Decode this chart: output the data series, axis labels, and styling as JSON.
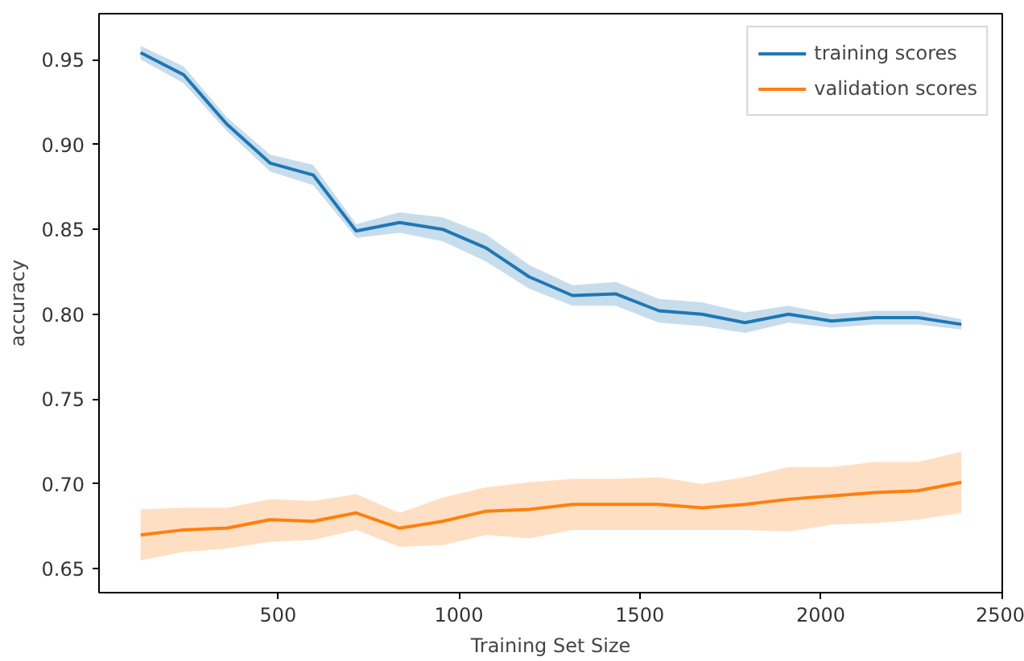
{
  "chart_data": {
    "type": "line",
    "xlabel": "Training Set Size",
    "ylabel": "accuracy",
    "x": [
      120,
      239,
      358,
      478,
      597,
      716,
      836,
      955,
      1075,
      1194,
      1314,
      1433,
      1553,
      1672,
      1791,
      1911,
      2030,
      2150,
      2269,
      2389
    ],
    "series": [
      {
        "name": "training scores",
        "color": "#1f77b4",
        "values": [
          0.954,
          0.941,
          0.912,
          0.889,
          0.882,
          0.849,
          0.854,
          0.85,
          0.839,
          0.822,
          0.811,
          0.812,
          0.802,
          0.8,
          0.795,
          0.8,
          0.796,
          0.798,
          0.798,
          0.794
        ],
        "lower": [
          0.95,
          0.936,
          0.908,
          0.884,
          0.876,
          0.845,
          0.848,
          0.843,
          0.831,
          0.815,
          0.805,
          0.805,
          0.795,
          0.793,
          0.789,
          0.795,
          0.792,
          0.794,
          0.794,
          0.791
        ],
        "upper": [
          0.958,
          0.946,
          0.916,
          0.894,
          0.888,
          0.853,
          0.86,
          0.857,
          0.847,
          0.829,
          0.817,
          0.819,
          0.809,
          0.807,
          0.801,
          0.805,
          0.8,
          0.802,
          0.802,
          0.797
        ]
      },
      {
        "name": "validation scores",
        "color": "#ff7f0e",
        "values": [
          0.67,
          0.673,
          0.674,
          0.679,
          0.678,
          0.683,
          0.674,
          0.678,
          0.684,
          0.685,
          0.688,
          0.688,
          0.688,
          0.686,
          0.688,
          0.691,
          0.693,
          0.695,
          0.696,
          0.701
        ],
        "lower": [
          0.655,
          0.66,
          0.662,
          0.666,
          0.667,
          0.673,
          0.663,
          0.664,
          0.67,
          0.668,
          0.673,
          0.673,
          0.673,
          0.673,
          0.673,
          0.672,
          0.676,
          0.677,
          0.679,
          0.683
        ],
        "upper": [
          0.685,
          0.686,
          0.686,
          0.691,
          0.69,
          0.694,
          0.683,
          0.692,
          0.698,
          0.701,
          0.703,
          0.703,
          0.704,
          0.7,
          0.704,
          0.71,
          0.71,
          0.713,
          0.713,
          0.719
        ]
      }
    ],
    "xlim": [
      5,
      2502
    ],
    "ylim": [
      0.636,
      0.977
    ],
    "xticks": [
      500,
      1000,
      1500,
      2000,
      2500
    ],
    "yticks": [
      {
        "value": 0.65,
        "label": "0.65"
      },
      {
        "value": 0.7,
        "label": "0.70"
      },
      {
        "value": 0.75,
        "label": "0.75"
      },
      {
        "value": 0.8,
        "label": "0.80"
      },
      {
        "value": 0.85,
        "label": "0.85"
      },
      {
        "value": 0.9,
        "label": "0.90"
      },
      {
        "value": 0.95,
        "label": "0.95"
      }
    ],
    "legend": "top right",
    "grid": false
  }
}
